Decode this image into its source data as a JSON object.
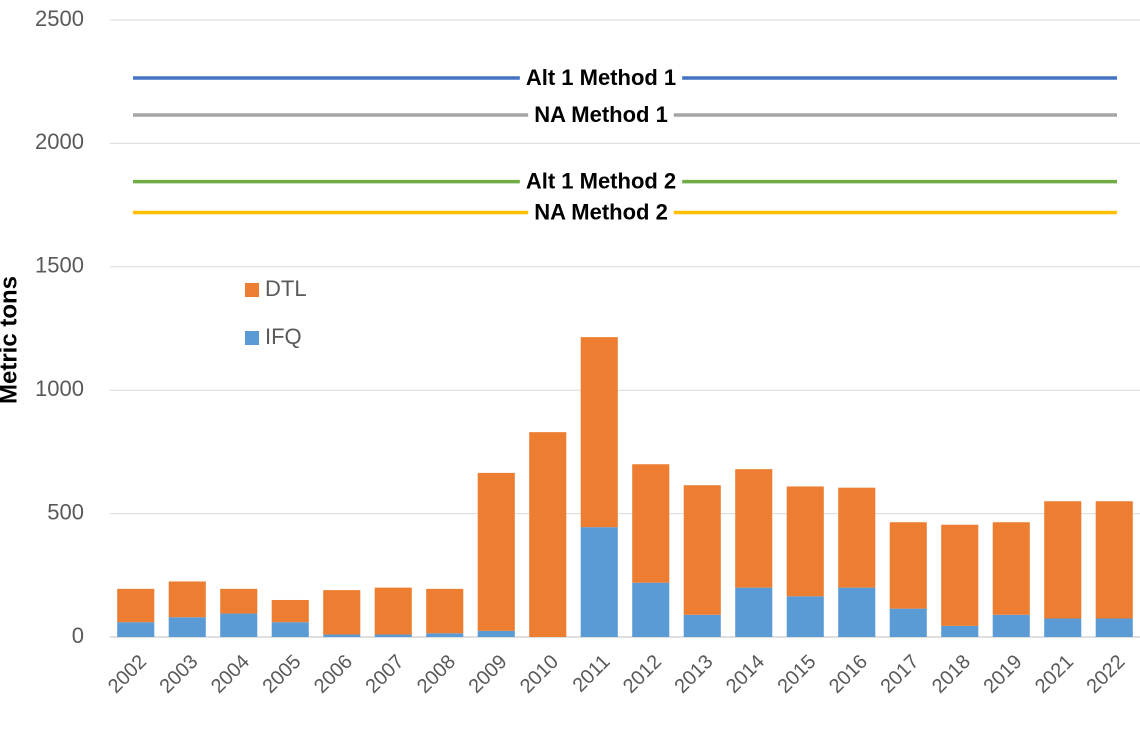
{
  "chart_data": {
    "type": "stacked_bar",
    "y_label": "Metric tons",
    "categories": [
      "2002",
      "2003",
      "2004",
      "2005",
      "2006",
      "2007",
      "2008",
      "2009",
      "2010",
      "2011",
      "2012",
      "2013",
      "2014",
      "2015",
      "2016",
      "2017",
      "2018",
      "2019",
      "2021",
      "2022"
    ],
    "series": [
      {
        "name": "IFQ",
        "color": "#5b9bd5",
        "values": [
          60,
          80,
          95,
          60,
          10,
          10,
          15,
          25,
          0,
          445,
          220,
          90,
          200,
          165,
          200,
          115,
          45,
          90,
          75,
          75
        ]
      },
      {
        "name": "DTL",
        "color": "#ed7d31",
        "values": [
          135,
          145,
          100,
          90,
          180,
          190,
          180,
          640,
          830,
          770,
          480,
          525,
          480,
          445,
          405,
          350,
          410,
          375,
          475,
          475
        ]
      }
    ],
    "reference_lines": [
      {
        "name": "Alt 1 Method 1",
        "value": 2265,
        "color": "#4472c4"
      },
      {
        "name": "NA Method 1",
        "value": 2115,
        "color": "#a5a5a5"
      },
      {
        "name": "Alt 1 Method 2",
        "value": 1845,
        "color": "#70ad47"
      },
      {
        "name": "NA Method 2",
        "value": 1720,
        "color": "#ffc000"
      }
    ],
    "ylim": [
      0,
      2500
    ],
    "yticks": [
      0,
      500,
      1000,
      1500,
      2000,
      2500
    ],
    "grid": true,
    "legend": "upper left"
  }
}
